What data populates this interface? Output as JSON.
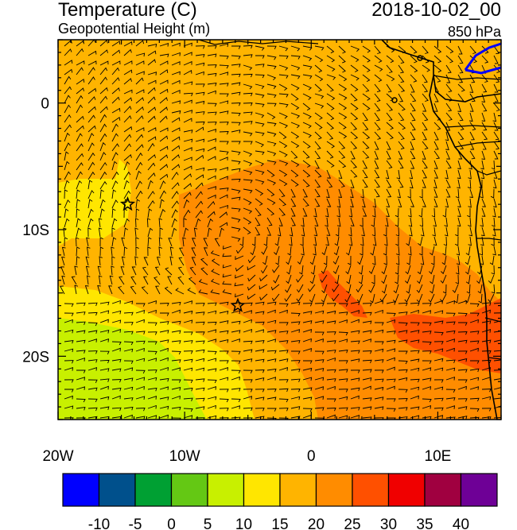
{
  "header": {
    "title": "Temperature (C)",
    "subtitle": "Geopotential Height (m)",
    "valid_time": "2018-10-02_00",
    "level": "850 hPa"
  },
  "map": {
    "lon_range": [
      -20,
      15
    ],
    "lat_range": [
      -25,
      5
    ],
    "x_ticks": [
      {
        "lon": -20,
        "label": "20W"
      },
      {
        "lon": -10,
        "label": "10W"
      },
      {
        "lon": 0,
        "label": "0"
      },
      {
        "lon": 10,
        "label": "10E"
      }
    ],
    "y_ticks": [
      {
        "lat": 0,
        "label": "0"
      },
      {
        "lat": -10,
        "label": "10S"
      },
      {
        "lat": -20,
        "label": "20S"
      }
    ],
    "stars": [
      {
        "lon": -14.5,
        "lat": -8
      },
      {
        "lon": -5.8,
        "lat": -16
      }
    ],
    "colors": {
      "land_outline": "#000000",
      "lake": "#0000ff"
    }
  },
  "colorbar": {
    "bounds": [
      "-10",
      "-5",
      "0",
      "5",
      "10",
      "15",
      "20",
      "25",
      "30",
      "35",
      "40"
    ],
    "colors": [
      "#0000ff",
      "#00508c",
      "#00a033",
      "#64c814",
      "#c8f000",
      "#ffe600",
      "#ffb400",
      "#ff8c00",
      "#ff5000",
      "#f00000",
      "#a00040",
      "#6e0096"
    ]
  }
}
